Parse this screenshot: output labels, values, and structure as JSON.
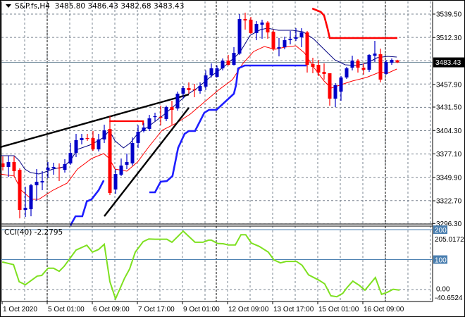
{
  "header": {
    "symbol": "S&P.fs,H4",
    "open": "3485.80",
    "high": "3486.43",
    "low": "3482.68",
    "close": "3483.43"
  },
  "cci_header": {
    "name": "CCI(40)",
    "value": "-2.2795"
  },
  "colors": {
    "bull": "#0000c8",
    "bear": "#ff0000",
    "ma_fast": "#000080",
    "ma_slow": "#ff0000",
    "support": "#1e1eff",
    "resistance": "#ff0000",
    "trendline": "#000000",
    "cci": "#7ee020",
    "level": "#4a7fb0",
    "grid": "#7a8490",
    "price_box": "#000000"
  },
  "chart_data": [
    {
      "type": "candlestick",
      "title": "S&P.fs,H4",
      "ylim": [
        3296.3,
        3539.5
      ],
      "price_ticks": [
        "3539.50",
        "3512.30",
        "3457.90",
        "3431.50",
        "3404.30",
        "3377.10",
        "3349.90",
        "3322.70",
        "3296.30"
      ],
      "current_price": "3483.43",
      "x_ticks": [
        {
          "i": 0,
          "label": "1 Oct 2020"
        },
        {
          "i": 8,
          "label": "5 Oct 01:00"
        },
        {
          "i": 16,
          "label": "6 Oct 09:00"
        },
        {
          "i": 24,
          "label": "7 Oct 17:00"
        },
        {
          "i": 32,
          "label": "9 Oct 01:00"
        },
        {
          "i": 40,
          "label": "12 Oct 09:00"
        },
        {
          "i": 48,
          "label": "13 Oct 17:00"
        },
        {
          "i": 56,
          "label": "15 Oct 01:00"
        },
        {
          "i": 64,
          "label": "16 Oct 09:00"
        }
      ],
      "period_separators": [
        8,
        38,
        68
      ],
      "grid": true,
      "ohlc": [
        [
          3366.1,
          3374.3,
          3357.9,
          3362.0
        ],
        [
          3362.0,
          3375.1,
          3350.5,
          3367.7
        ],
        [
          3367.7,
          3374.3,
          3351.4,
          3357.1
        ],
        [
          3358.7,
          3360.4,
          3302.3,
          3312.1
        ],
        [
          3312.1,
          3339.1,
          3303.9,
          3314.6
        ],
        [
          3312.9,
          3342.4,
          3304.7,
          3340.7
        ],
        [
          3340.7,
          3359.5,
          3322.7,
          3344.8
        ],
        [
          3344.0,
          3357.1,
          3335.0,
          3345.6
        ],
        [
          3358.7,
          3367.7,
          3348.9,
          3361.2
        ],
        [
          3360.4,
          3366.9,
          3353.0,
          3362.0
        ],
        [
          3361.2,
          3366.1,
          3345.6,
          3360.4
        ],
        [
          3358.7,
          3371.0,
          3355.5,
          3365.3
        ],
        [
          3366.1,
          3389.8,
          3364.5,
          3378.4
        ],
        [
          3378.4,
          3400.4,
          3373.5,
          3393.1
        ],
        [
          3393.1,
          3400.4,
          3388.2,
          3395.5
        ],
        [
          3395.5,
          3400.4,
          3392.3,
          3394.7
        ],
        [
          3395.5,
          3403.7,
          3380.8,
          3382.4
        ],
        [
          3382.4,
          3400.4,
          3380.0,
          3393.9
        ],
        [
          3393.9,
          3411.1,
          3389.8,
          3404.5
        ],
        [
          3406.2,
          3420.9,
          3329.3,
          3331.7
        ],
        [
          3335.8,
          3359.5,
          3330.9,
          3353.8
        ],
        [
          3353.0,
          3371.8,
          3351.4,
          3363.6
        ],
        [
          3364.5,
          3377.5,
          3359.5,
          3367.7
        ],
        [
          3366.1,
          3396.3,
          3363.6,
          3389.8
        ],
        [
          3389.8,
          3410.3,
          3384.1,
          3402.9
        ],
        [
          3403.7,
          3412.7,
          3402.1,
          3407.8
        ],
        [
          3406.2,
          3422.5,
          3403.7,
          3418.4
        ],
        [
          3420.1,
          3425.0,
          3415.2,
          3420.9
        ],
        [
          3420.1,
          3433.2,
          3410.3,
          3419.3
        ],
        [
          3417.6,
          3433.2,
          3415.2,
          3431.5
        ],
        [
          3431.5,
          3438.9,
          3411.1,
          3428.3
        ],
        [
          3429.9,
          3449.5,
          3427.4,
          3447.1
        ],
        [
          3447.1,
          3456.1,
          3441.3,
          3453.6
        ],
        [
          3453.6,
          3460.2,
          3447.1,
          3451.2
        ],
        [
          3452.0,
          3458.5,
          3443.0,
          3451.2
        ],
        [
          3450.3,
          3460.2,
          3447.1,
          3456.1
        ],
        [
          3455.3,
          3474.1,
          3451.2,
          3468.3
        ],
        [
          3468.3,
          3482.2,
          3465.9,
          3476.5
        ],
        [
          3466.7,
          3479.8,
          3465.9,
          3476.5
        ],
        [
          3476.5,
          3488.0,
          3474.1,
          3485.5
        ],
        [
          3485.5,
          3492.1,
          3479.8,
          3480.6
        ],
        [
          3480.6,
          3501.1,
          3479.8,
          3494.5
        ],
        [
          3493.7,
          3539.5,
          3492.1,
          3533.8
        ],
        [
          3533.8,
          3541.1,
          3521.5,
          3532.1
        ],
        [
          3533.0,
          3536.2,
          3516.6,
          3517.4
        ],
        [
          3517.4,
          3531.3,
          3509.2,
          3528.0
        ],
        [
          3527.2,
          3533.0,
          3510.9,
          3529.7
        ],
        [
          3529.7,
          3531.3,
          3510.9,
          3518.2
        ],
        [
          3519.0,
          3521.5,
          3497.0,
          3499.4
        ],
        [
          3499.4,
          3511.7,
          3490.4,
          3501.1
        ],
        [
          3501.1,
          3513.3,
          3498.6,
          3509.2
        ],
        [
          3509.2,
          3519.9,
          3504.3,
          3510.9
        ],
        [
          3510.9,
          3523.1,
          3508.4,
          3512.5
        ],
        [
          3512.5,
          3523.1,
          3501.1,
          3518.2
        ],
        [
          3518.2,
          3519.9,
          3471.6,
          3480.6
        ],
        [
          3481.4,
          3488.8,
          3470.8,
          3478.2
        ],
        [
          3480.6,
          3486.3,
          3467.5,
          3471.6
        ],
        [
          3472.4,
          3482.2,
          3463.4,
          3470.0
        ],
        [
          3470.8,
          3470.8,
          3433.2,
          3441.3
        ],
        [
          3441.3,
          3459.3,
          3431.5,
          3456.9
        ],
        [
          3449.5,
          3467.5,
          3438.9,
          3465.9
        ],
        [
          3465.9,
          3478.2,
          3464.2,
          3476.5
        ],
        [
          3477.3,
          3491.2,
          3474.1,
          3485.5
        ],
        [
          3485.5,
          3487.2,
          3471.6,
          3477.3
        ],
        [
          3477.3,
          3482.2,
          3469.2,
          3474.9
        ],
        [
          3474.9,
          3492.9,
          3472.4,
          3492.1
        ],
        [
          3491.2,
          3508.4,
          3483.9,
          3493.7
        ],
        [
          3492.9,
          3499.4,
          3460.2,
          3463.4
        ],
        [
          3470.0,
          3486.3,
          3469.2,
          3483.9
        ],
        [
          3483.1,
          3488.0,
          3480.6,
          3486.3
        ],
        [
          3485.8,
          3486.43,
          3482.68,
          3483.43
        ]
      ],
      "ma_fast": [
        [
          -0.5,
          3375.1
        ],
        [
          2,
          3375.1
        ],
        [
          2.9,
          3369.4
        ],
        [
          3.9,
          3359.5
        ],
        [
          4.9,
          3355.5
        ],
        [
          6.4,
          3353.8
        ],
        [
          7.25,
          3355.5
        ],
        [
          8.9,
          3359.5
        ],
        [
          10.75,
          3362.0
        ],
        [
          12,
          3369.4
        ],
        [
          13.25,
          3382.4
        ],
        [
          15.75,
          3388.2
        ],
        [
          17.9,
          3396.3
        ],
        [
          18.9,
          3404.5
        ],
        [
          19.9,
          3392.3
        ],
        [
          21.4,
          3384.1
        ],
        [
          22.6,
          3389.8
        ],
        [
          23.9,
          3400.4
        ],
        [
          25.75,
          3408.6
        ],
        [
          28.25,
          3420.9
        ],
        [
          30.75,
          3434.8
        ],
        [
          32.6,
          3445.4
        ],
        [
          34.5,
          3453.6
        ],
        [
          37,
          3467.5
        ],
        [
          39.5,
          3479.8
        ],
        [
          42,
          3494.5
        ],
        [
          43.9,
          3515.0
        ],
        [
          45.75,
          3521.5
        ],
        [
          47,
          3523.1
        ],
        [
          48.9,
          3520.7
        ],
        [
          51.4,
          3520.7
        ],
        [
          53.25,
          3519.0
        ],
        [
          55.1,
          3510.9
        ],
        [
          57,
          3498.6
        ],
        [
          58.9,
          3486.3
        ],
        [
          60.75,
          3480.6
        ],
        [
          62.6,
          3479.8
        ],
        [
          64.5,
          3482.2
        ],
        [
          66.4,
          3488.8
        ],
        [
          68.25,
          3490.4
        ],
        [
          69.9,
          3489.6
        ]
      ],
      "ma_slow": [
        [
          -0.5,
          3353.8
        ],
        [
          2,
          3351.4
        ],
        [
          3.25,
          3335.0
        ],
        [
          5.1,
          3324.4
        ],
        [
          6.4,
          3324.4
        ],
        [
          8.9,
          3335.0
        ],
        [
          11.4,
          3343.2
        ],
        [
          13.25,
          3359.5
        ],
        [
          15.75,
          3371.8
        ],
        [
          17.9,
          3377.5
        ],
        [
          18.9,
          3371.8
        ],
        [
          19.9,
          3359.5
        ],
        [
          22,
          3357.1
        ],
        [
          23.9,
          3367.7
        ],
        [
          25.75,
          3384.1
        ],
        [
          28.25,
          3404.5
        ],
        [
          30.75,
          3412.7
        ],
        [
          33.25,
          3423.3
        ],
        [
          35.75,
          3437.3
        ],
        [
          38.25,
          3451.2
        ],
        [
          40.75,
          3463.4
        ],
        [
          42.6,
          3482.2
        ],
        [
          44.5,
          3496.1
        ],
        [
          46.4,
          3501.9
        ],
        [
          48.25,
          3498.6
        ],
        [
          50.1,
          3501.1
        ],
        [
          52,
          3502.7
        ],
        [
          53.5,
          3494.5
        ],
        [
          55.1,
          3478.2
        ],
        [
          57,
          3461.8
        ],
        [
          58.25,
          3453.6
        ],
        [
          60.1,
          3457.7
        ],
        [
          62,
          3461.8
        ],
        [
          64.5,
          3465.9
        ],
        [
          67,
          3472.4
        ],
        [
          68.25,
          3470.8
        ],
        [
          69.9,
          3475.7
        ]
      ],
      "support_line": [
        [
          [
            12,
            3294.1
          ],
          [
            12.9,
            3304.7
          ],
          [
            14.1,
            3304.7
          ],
          [
            14.9,
            3321.9
          ],
          [
            15.75,
            3324.4
          ],
          [
            17,
            3335.0
          ],
          [
            17.9,
            3346.4
          ]
        ],
        [
          [
            26,
            3332.5
          ],
          [
            27,
            3332.5
          ],
          [
            28,
            3344.8
          ],
          [
            29.1,
            3345.6
          ],
          [
            30.1,
            3351.4
          ],
          [
            31.1,
            3384.1
          ],
          [
            32.25,
            3400.4
          ],
          [
            33,
            3403.7
          ],
          [
            34.1,
            3403.7
          ],
          [
            35.75,
            3425.0
          ],
          [
            36.6,
            3428.3
          ],
          [
            37.9,
            3428.3
          ],
          [
            41,
            3447.1
          ],
          [
            41.4,
            3457.7
          ],
          [
            41.75,
            3476.5
          ],
          [
            42.9,
            3479.8
          ],
          [
            53.9,
            3479.8
          ]
        ]
      ],
      "resistance_line": [
        [
          54.9,
          3546.0
        ],
        [
          56.4,
          3542.0
        ],
        [
          57,
          3537.9
        ],
        [
          57.6,
          3523.1
        ],
        [
          58,
          3511.7
        ],
        [
          70,
          3511.7
        ]
      ],
      "horizontal_line": [
        [
          18.9,
          3415.2
        ],
        [
          24.9,
          3415.2
        ],
        [
          24.9,
          3410.3
        ]
      ],
      "trendlines": [
        [
          [
            -0.5,
            3384.9
          ],
          [
            33,
            3446.2
          ]
        ],
        [
          [
            18,
            3304.7
          ],
          [
            33,
            3430.7
          ]
        ]
      ]
    },
    {
      "type": "line",
      "title": "CCI(40) -2.2795",
      "ylim": [
        -40.6524,
        205.0172
      ],
      "levels": [
        {
          "value": 200,
          "label": "200"
        },
        {
          "value": 100,
          "label": "100"
        }
      ],
      "zero_label": "0.00",
      "max_label": "205.0172",
      "min_label": "-40.6524",
      "points": [
        [
          -0.1,
          92
        ],
        [
          1.9,
          83
        ],
        [
          2.9,
          26
        ],
        [
          4,
          16
        ],
        [
          6.1,
          45
        ],
        [
          6.9,
          47
        ],
        [
          8,
          71
        ],
        [
          9,
          71
        ],
        [
          10,
          61
        ],
        [
          10.9,
          78
        ],
        [
          13,
          132
        ],
        [
          14.9,
          148
        ],
        [
          15.9,
          125
        ],
        [
          17,
          134
        ],
        [
          18,
          151
        ],
        [
          19,
          26
        ],
        [
          20,
          -31
        ],
        [
          21.6,
          38
        ],
        [
          22.5,
          69
        ],
        [
          23.5,
          125
        ],
        [
          24.9,
          160
        ],
        [
          25.9,
          169
        ],
        [
          27,
          168
        ],
        [
          29.1,
          168
        ],
        [
          30,
          158
        ],
        [
          32,
          195
        ],
        [
          34.1,
          158
        ],
        [
          35.5,
          158
        ],
        [
          36.5,
          165
        ],
        [
          37,
          165
        ],
        [
          38.1,
          154
        ],
        [
          39.1,
          153
        ],
        [
          40,
          149
        ],
        [
          41.25,
          149
        ],
        [
          42.25,
          183
        ],
        [
          43.1,
          183
        ],
        [
          44.1,
          155
        ],
        [
          45.5,
          144
        ],
        [
          47.1,
          125
        ],
        [
          48.1,
          99
        ],
        [
          49.25,
          89
        ],
        [
          50.25,
          94
        ],
        [
          52.1,
          94
        ],
        [
          53.1,
          81
        ],
        [
          54.25,
          49
        ],
        [
          56.1,
          31
        ],
        [
          57.1,
          19
        ],
        [
          58.2,
          -21
        ],
        [
          59.25,
          -24
        ],
        [
          60.3,
          -13
        ],
        [
          61.1,
          7
        ],
        [
          62.1,
          28
        ],
        [
          63.25,
          14
        ],
        [
          64.25,
          -2
        ],
        [
          66.1,
          40
        ],
        [
          67.2,
          -16
        ],
        [
          68.25,
          -9
        ],
        [
          69.25,
          1
        ],
        [
          70.4,
          -2
        ]
      ]
    }
  ]
}
